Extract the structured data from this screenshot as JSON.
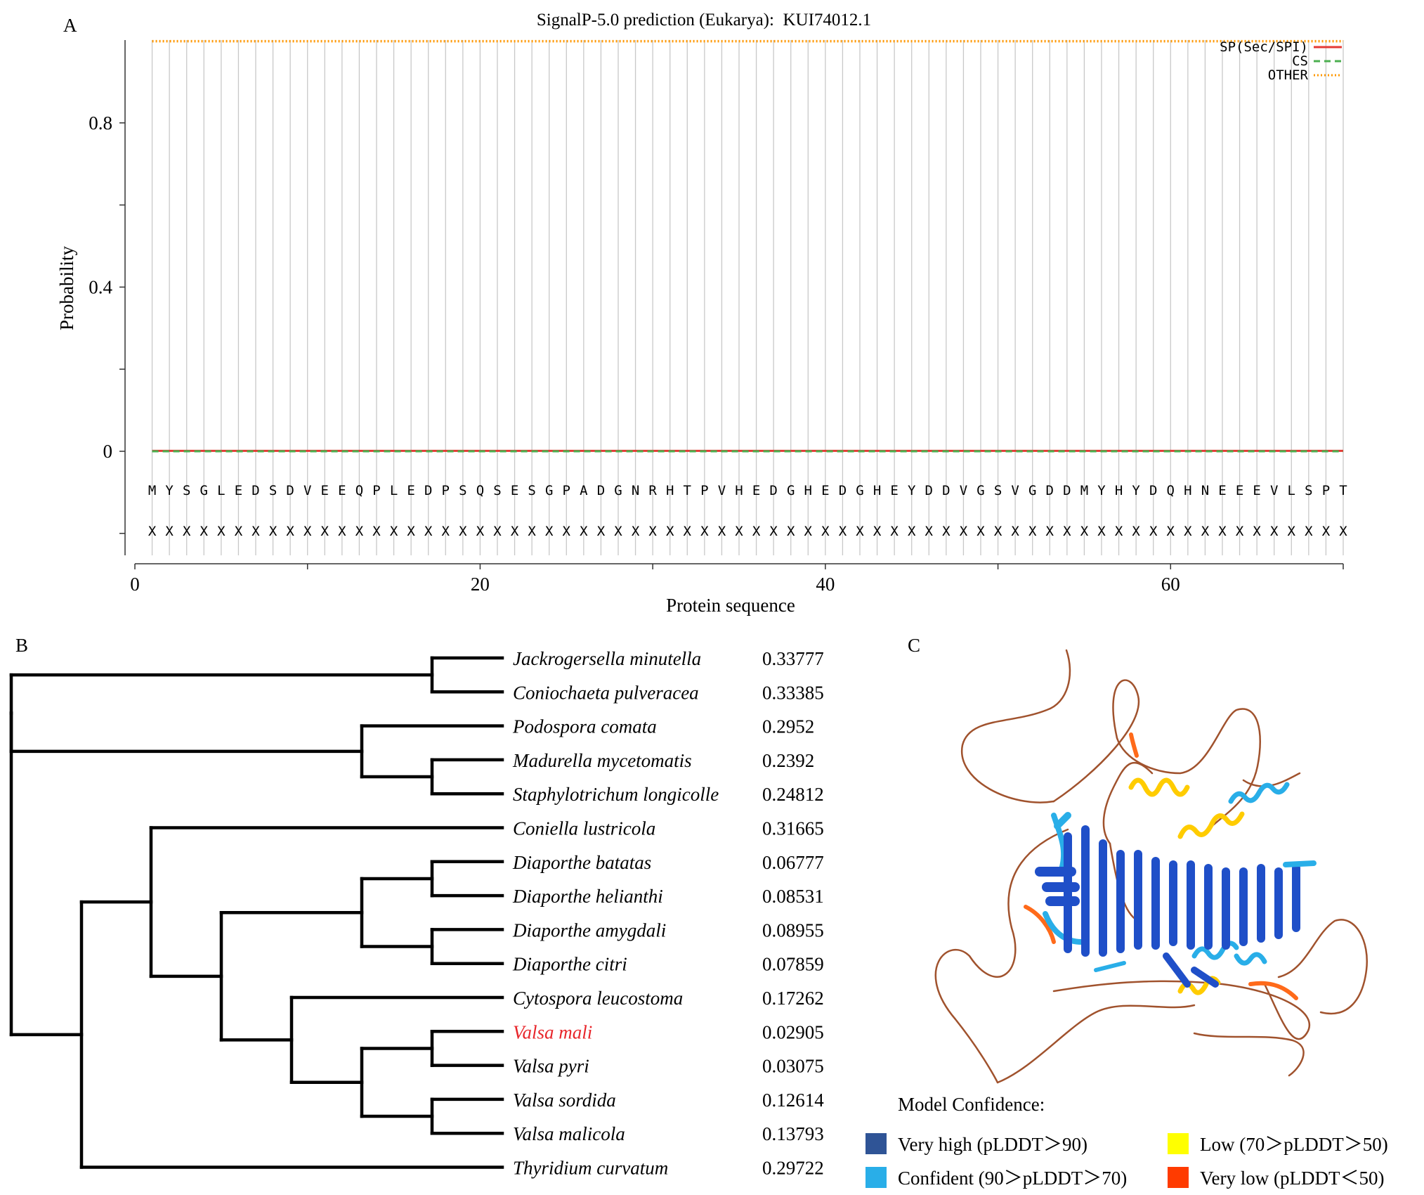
{
  "panels": {
    "a_label": "A",
    "b_label": "B",
    "c_label": "C"
  },
  "chart_data": [
    {
      "type": "line",
      "title": "SignalP-5.0 prediction (Eukarya):  KUI74012.1",
      "xlabel": "Protein sequence",
      "ylabel": "Probability",
      "xlim": [
        0,
        70
      ],
      "ylim": [
        -0.25,
        1.0
      ],
      "xticks": [
        0,
        20,
        40,
        60
      ],
      "yticks": [
        0,
        0.4,
        0.8
      ],
      "ytick_labels": [
        "0",
        "0.4",
        "0.8"
      ],
      "grid": "vertical line at each residue",
      "legend_placement": "top-right",
      "sequence": [
        "M",
        "Y",
        "S",
        "G",
        "L",
        "E",
        "D",
        "S",
        "D",
        "V",
        "E",
        "E",
        "Q",
        "P",
        "L",
        "E",
        "D",
        "P",
        "S",
        "Q",
        "S",
        "E",
        "S",
        "G",
        "P",
        "A",
        "D",
        "G",
        "N",
        "R",
        "H",
        "T",
        "P",
        "V",
        "H",
        "E",
        "D",
        "G",
        "H",
        "E",
        "D",
        "G",
        "H",
        "E",
        "Y",
        "D",
        "D",
        "V",
        "G",
        "S",
        "V",
        "G",
        "D",
        "D",
        "M",
        "Y",
        "H",
        "Y",
        "D",
        "Q",
        "H",
        "N",
        "E",
        "E",
        "E",
        "V",
        "L",
        "S",
        "P",
        "T"
      ],
      "annotation_symbol": "X",
      "series": [
        {
          "name": "SP(Sec/SPI)",
          "color": "#e53935",
          "dash": "solid",
          "x_range": [
            1,
            70
          ],
          "value": 0.001
        },
        {
          "name": "CS",
          "color": "#4caf50",
          "dash": "dashed",
          "x_range": [
            1,
            70
          ],
          "value": 0.0
        },
        {
          "name": "OTHER",
          "color": "#ff9800",
          "dash": "dotted",
          "x_range": [
            1,
            70
          ],
          "value": 0.999
        }
      ]
    },
    {
      "type": "tree",
      "highlight_color": "#e8262b",
      "taxa": [
        {
          "name": "Jackrogersella minutella",
          "value": "0.33777",
          "highlight": false
        },
        {
          "name": "Coniochaeta pulveracea",
          "value": "0.33385",
          "highlight": false
        },
        {
          "name": "Podospora comata",
          "value": "0.2952",
          "highlight": false
        },
        {
          "name": "Madurella mycetomatis",
          "value": "0.2392",
          "highlight": false
        },
        {
          "name": "Staphylotrichum longicolle",
          "value": "0.24812",
          "highlight": false
        },
        {
          "name": "Coniella lustricola",
          "value": "0.31665",
          "highlight": false
        },
        {
          "name": "Diaporthe batatas",
          "value": "0.06777",
          "highlight": false
        },
        {
          "name": "Diaporthe helianthi",
          "value": "0.08531",
          "highlight": false
        },
        {
          "name": "Diaporthe amygdali",
          "value": "0.08955",
          "highlight": false
        },
        {
          "name": "Diaporthe citri",
          "value": "0.07859",
          "highlight": false
        },
        {
          "name": "Cytospora leucostoma",
          "value": "0.17262",
          "highlight": false
        },
        {
          "name": "Valsa mali",
          "value": "0.02905",
          "highlight": true
        },
        {
          "name": "Valsa pyri",
          "value": "0.03075",
          "highlight": false
        },
        {
          "name": "Valsa sordida",
          "value": "0.12614",
          "highlight": false
        },
        {
          "name": "Valsa malicola",
          "value": "0.13793",
          "highlight": false
        },
        {
          "name": "Thyridium curvatum",
          "value": "0.29722",
          "highlight": false
        }
      ]
    }
  ],
  "structure_legend": {
    "title": "Model Confidence:",
    "items": [
      {
        "label": "Very high (pLDDT＞90)",
        "color": "#2f5496"
      },
      {
        "label": "Confident (90＞pLDDT＞70)",
        "color": "#29aee8"
      },
      {
        "label": "Low (70＞pLDDT＞50)",
        "color": "#ffff00"
      },
      {
        "label": "Very low (pLDDT＜50)",
        "color": "#ff3b00"
      }
    ]
  }
}
